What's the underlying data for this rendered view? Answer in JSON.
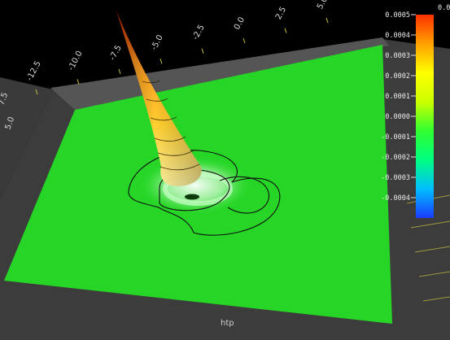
{
  "chart_data": {
    "type": "surface",
    "title": "",
    "xlabel": "",
    "ylabel": "",
    "zlabel": "htp",
    "x_ticks": [
      "-12.5",
      "-10.0",
      "-7.5",
      "-5.0",
      "-2.5",
      "0.0",
      "2.5",
      "5.0"
    ],
    "y_ticks": [
      "7.5",
      "5.0"
    ],
    "colorbar": {
      "ticks": [
        "0.0005",
        "0.0004",
        "0.0003",
        "0.0002",
        "0.0001",
        "0.0000",
        "-0.0001",
        "-0.0002",
        "-0.0003",
        "-0.0004"
      ],
      "min": -0.0005,
      "max": 0.0005,
      "top_label": "0.0",
      "stops": [
        "#1a3cff",
        "#00bfff",
        "#00ff80",
        "#30ff30",
        "#ccff00",
        "#ffff00",
        "#ffa000",
        "#ff3000"
      ]
    },
    "surface": {
      "peak_value": 0.0005,
      "baseline_value": 0.0,
      "plane_color": "#28e028",
      "contour_color": "#000000"
    }
  }
}
